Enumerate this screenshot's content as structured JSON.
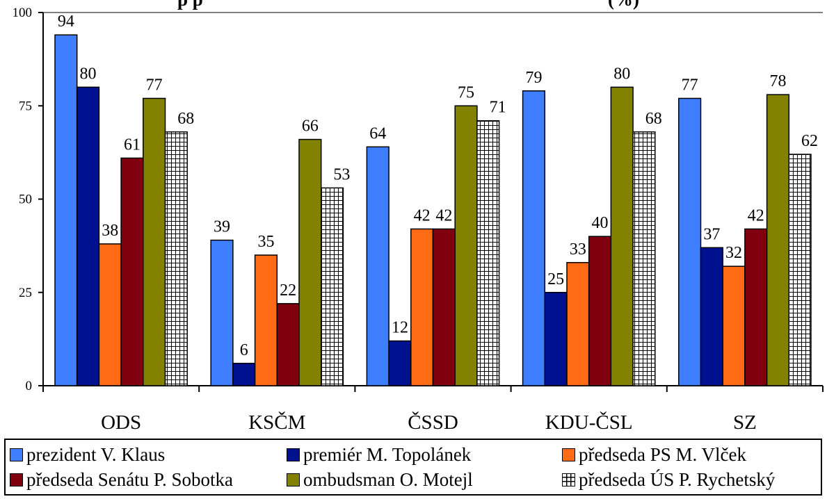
{
  "chart_data": {
    "type": "bar",
    "title": "p  p",
    "title_suffix": "(%)",
    "categories": [
      "ODS",
      "KSČM",
      "ČSSD",
      "KDU-ČSL",
      "SZ"
    ],
    "ylim": [
      0,
      100
    ],
    "yticks": [
      0,
      25,
      50,
      75,
      100
    ],
    "grid": false,
    "legend_position": "bottom",
    "series": [
      {
        "name": "prezident V. Klaus",
        "color": "#3f7fff",
        "pattern": "solid",
        "values": [
          94,
          39,
          64,
          79,
          77
        ]
      },
      {
        "name": "premiér M. Topolánek",
        "color": "#00118f",
        "pattern": "solid",
        "values": [
          80,
          6,
          12,
          25,
          37
        ]
      },
      {
        "name": "předseda PS M. Vlček",
        "color": "#ff6a14",
        "pattern": "solid",
        "values": [
          38,
          35,
          42,
          33,
          32
        ]
      },
      {
        "name": "předseda Senátu P. Sobotka",
        "color": "#800010",
        "pattern": "solid",
        "values": [
          61,
          22,
          42,
          40,
          42
        ]
      },
      {
        "name": "ombudsman O. Motejl",
        "color": "#828200",
        "pattern": "solid",
        "values": [
          77,
          66,
          75,
          80,
          78
        ]
      },
      {
        "name": "předseda ÚS P. Rychetský",
        "color": "#000000",
        "pattern": "grid",
        "values": [
          68,
          53,
          71,
          68,
          62
        ]
      }
    ]
  }
}
